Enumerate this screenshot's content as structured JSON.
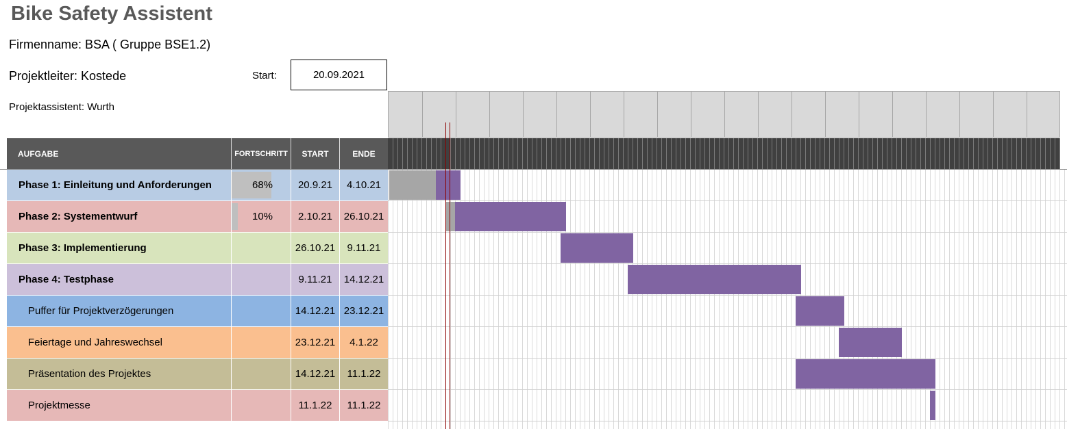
{
  "title": "Bike Safety Assistent",
  "firm": "Firmenname: BSA ( Gruppe BSE1.2)",
  "lead": "Projektleiter: Kostede",
  "assistant": "Projektassistent: Wurth",
  "start_label": "Start:",
  "start_date": "20.09.2021",
  "headers": {
    "task": "AUFGABE",
    "progress": "FORTSCHRITT",
    "start": "START",
    "end": "ENDE"
  },
  "colors": {
    "header_bg": "#595959",
    "bar": "#8064a2",
    "bar_done": "#a6a6a6",
    "today_line": "#8b0000"
  },
  "rows": [
    {
      "task": "Phase 1: Einleitung und Anforderungen",
      "bold": true,
      "progress": "68%",
      "progress_value": 0.68,
      "start": "20.9.21",
      "end": "4.10.21",
      "color": "#b8cce4"
    },
    {
      "task": "Phase 2: Systementwurf",
      "bold": true,
      "progress": "10%",
      "progress_value": 0.1,
      "start": "2.10.21",
      "end": "26.10.21",
      "color": "#e6b8b7"
    },
    {
      "task": "Phase 3: Implementierung",
      "bold": true,
      "progress": "",
      "progress_value": 0,
      "start": "26.10.21",
      "end": "9.11.21",
      "color": "#d8e4bc"
    },
    {
      "task": "Phase 4: Testphase",
      "bold": true,
      "progress": "",
      "progress_value": 0,
      "start": "9.11.21",
      "end": "14.12.21",
      "color": "#ccc0da"
    },
    {
      "task": "Puffer für Projektverzögerungen",
      "bold": false,
      "progress": "",
      "progress_value": 0,
      "start": "14.12.21",
      "end": "23.12.21",
      "color": "#8db4e2"
    },
    {
      "task": "Feiertage und Jahreswechsel",
      "bold": false,
      "progress": "",
      "progress_value": 0,
      "start": "23.12.21",
      "end": "4.1.22",
      "color": "#fabf8f"
    },
    {
      "task": "Präsentation des Projektes",
      "bold": false,
      "progress": "",
      "progress_value": 0,
      "start": "14.12.21",
      "end": "11.1.22",
      "color": "#c4bd97"
    },
    {
      "task": "Projektmesse",
      "bold": false,
      "progress": "",
      "progress_value": 0,
      "start": "11.1.22",
      "end": "11.1.22",
      "color": "#e6b8b7"
    }
  ]
}
